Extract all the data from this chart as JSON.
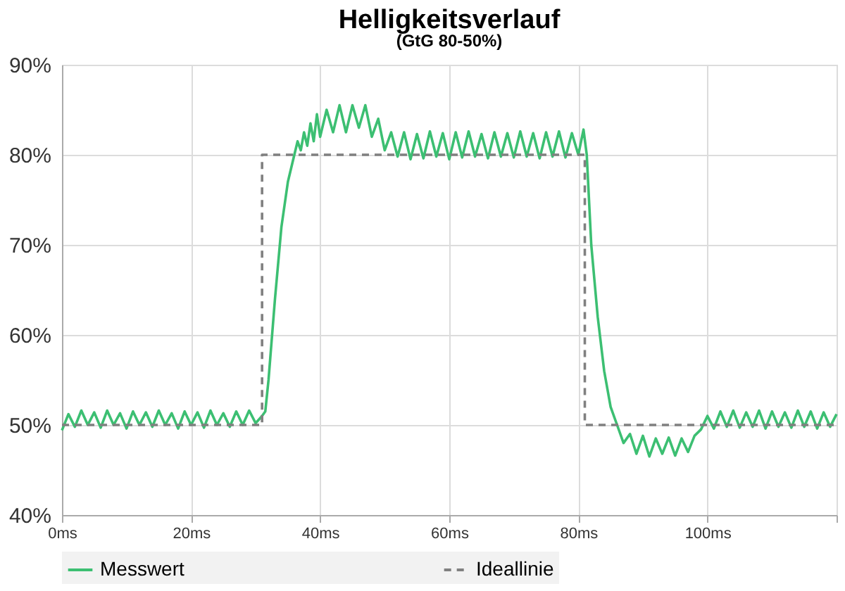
{
  "chart_data": {
    "type": "line",
    "title": "Helligkeitsverlauf",
    "subtitle": "(GtG 80-50%)",
    "xlim": [
      0,
      120
    ],
    "xticks": [
      {
        "value": 0,
        "label": "0ms"
      },
      {
        "value": 20,
        "label": "20ms"
      },
      {
        "value": 40,
        "label": "40ms"
      },
      {
        "value": 60,
        "label": "60ms"
      },
      {
        "value": 80,
        "label": "80ms"
      },
      {
        "value": 100,
        "label": "100ms"
      },
      {
        "value": 120,
        "label": null
      }
    ],
    "ylim": [
      40,
      90
    ],
    "yticks": [
      {
        "value": 40,
        "label": "40%"
      },
      {
        "value": 50,
        "label": "50%"
      },
      {
        "value": 60,
        "label": "60%"
      },
      {
        "value": 70,
        "label": "70%"
      },
      {
        "value": 80,
        "label": "80%"
      },
      {
        "value": 90,
        "label": "90%"
      }
    ],
    "grid": true,
    "legend": "bottom",
    "marker": "none",
    "series": [
      {
        "name": "Messwert",
        "color": "#3cbf72",
        "line_style": "solid",
        "x": [
          0,
          1,
          2,
          3,
          4,
          5,
          6,
          7,
          8,
          9,
          10,
          11,
          12,
          13,
          14,
          15,
          16,
          17,
          18,
          19,
          20,
          21,
          22,
          23,
          24,
          25,
          26,
          27,
          28,
          29,
          30,
          31,
          31.5,
          32,
          33,
          34,
          35,
          36,
          36.5,
          37,
          37.5,
          38,
          38.5,
          39,
          39.5,
          40,
          41,
          42,
          43,
          44,
          45,
          46,
          47,
          48,
          49,
          50,
          51,
          52,
          53,
          54,
          55,
          56,
          57,
          58,
          59,
          60,
          61,
          62,
          63,
          64,
          65,
          66,
          67,
          68,
          69,
          70,
          71,
          72,
          73,
          74,
          75,
          76,
          77,
          78,
          79,
          80,
          80.8,
          81.3,
          82,
          83,
          84,
          85,
          86,
          87,
          88,
          89,
          90,
          91,
          92,
          93,
          94,
          95,
          96,
          97,
          98,
          99,
          100,
          101,
          102,
          103,
          104,
          105,
          106,
          107,
          108,
          109,
          110,
          111,
          112,
          113,
          114,
          115,
          116,
          117,
          118,
          119,
          120
        ],
        "values": [
          49.4,
          51.2,
          49.8,
          51.6,
          50.0,
          51.4,
          49.7,
          51.6,
          50.0,
          51.3,
          49.6,
          51.5,
          50.0,
          51.4,
          49.8,
          51.6,
          50.0,
          51.3,
          49.6,
          51.5,
          50.0,
          51.4,
          49.7,
          51.6,
          50.0,
          51.3,
          49.8,
          51.5,
          50.0,
          51.6,
          50.2,
          51.0,
          51.5,
          55,
          64,
          72,
          77,
          80,
          81.5,
          80.5,
          82.5,
          81,
          83.5,
          81.5,
          84.5,
          82,
          85,
          82.5,
          85.5,
          82.5,
          85.5,
          83,
          85.5,
          82,
          84,
          80.5,
          82.5,
          79.8,
          82.5,
          79.5,
          82.3,
          79.6,
          82.6,
          79.8,
          82.4,
          79.5,
          82.5,
          79.7,
          82.6,
          79.8,
          82.3,
          79.6,
          82.5,
          79.8,
          82.4,
          79.7,
          82.6,
          79.8,
          82.4,
          79.6,
          82.5,
          79.8,
          82.6,
          79.7,
          82.4,
          80,
          82.8,
          80,
          70,
          62,
          56,
          52,
          50,
          48,
          49,
          46.8,
          48.8,
          46.5,
          48.5,
          46.8,
          48.6,
          46.6,
          48.5,
          47,
          48.8,
          49.5,
          51,
          49.6,
          51.5,
          49.8,
          51.6,
          49.7,
          51.4,
          49.8,
          51.6,
          49.6,
          51.5,
          49.8,
          51.4,
          49.7,
          51.6,
          49.8,
          51.5,
          49.6,
          51.4,
          49.8,
          51.2
        ]
      },
      {
        "name": "Ideallinie",
        "color": "#808080",
        "line_style": "dashed",
        "x": [
          0,
          31,
          31,
          81,
          81,
          120
        ],
        "values": [
          50,
          50,
          80,
          80,
          50,
          50
        ]
      }
    ]
  }
}
